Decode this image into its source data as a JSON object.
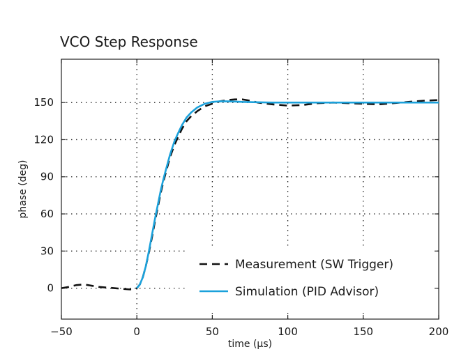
{
  "chart_data": {
    "type": "line",
    "title": "VCO Step Response",
    "xlabel": "time (μs)",
    "ylabel": "phase (deg)",
    "xlim": [
      -50,
      200
    ],
    "ylim": [
      -25,
      185
    ],
    "xticks": [
      -50,
      0,
      50,
      100,
      150,
      200
    ],
    "xtick_labels": [
      "−50",
      "0",
      "50",
      "100",
      "150",
      "200"
    ],
    "yticks": [
      0,
      30,
      60,
      90,
      120,
      150
    ],
    "ytick_labels": [
      "0",
      "30",
      "60",
      "90",
      "120",
      "150"
    ],
    "grid": true,
    "legend_position": "lower-right",
    "series": [
      {
        "name": "Measurement (SW Trigger)",
        "style": "dashed",
        "color": "#111111",
        "x": [
          -50,
          -45,
          -40,
          -35,
          -30,
          -25,
          -20,
          -15,
          -10,
          -5,
          -2,
          0,
          2,
          4,
          6,
          8,
          10,
          12,
          14,
          16,
          18,
          20,
          22,
          25,
          28,
          30,
          33,
          36,
          40,
          45,
          50,
          55,
          60,
          65,
          70,
          75,
          80,
          90,
          100,
          110,
          120,
          130,
          140,
          150,
          160,
          170,
          180,
          190,
          200
        ],
        "y": [
          0,
          1,
          2.5,
          3,
          2,
          1,
          0.5,
          0,
          -0.5,
          -1,
          -1,
          0,
          3,
          9,
          18,
          29,
          41,
          54,
          66,
          78,
          88,
          97,
          106,
          116,
          124,
          129,
          135,
          139,
          143,
          147,
          149,
          151,
          152,
          152.5,
          152.5,
          151.5,
          150,
          148.5,
          147.5,
          148,
          149.5,
          150,
          149.5,
          149,
          148.5,
          149.5,
          150.5,
          151.5,
          152
        ]
      },
      {
        "name": "Simulation (PID Advisor)",
        "style": "solid",
        "color": "#1ba1db",
        "x": [
          0,
          2,
          4,
          6,
          8,
          10,
          12,
          14,
          16,
          18,
          20,
          22,
          25,
          28,
          30,
          33,
          36,
          40,
          45,
          50,
          55,
          60,
          65,
          70,
          80,
          90,
          100,
          120,
          140,
          160,
          180,
          200
        ],
        "y": [
          0,
          3,
          9,
          18,
          30,
          43,
          56,
          68,
          80,
          90,
          99,
          108,
          119,
          127,
          132,
          138,
          142,
          146,
          149,
          150.5,
          151,
          151,
          150.8,
          150.5,
          150.2,
          150,
          150,
          150,
          150,
          150,
          150,
          150
        ]
      }
    ]
  }
}
